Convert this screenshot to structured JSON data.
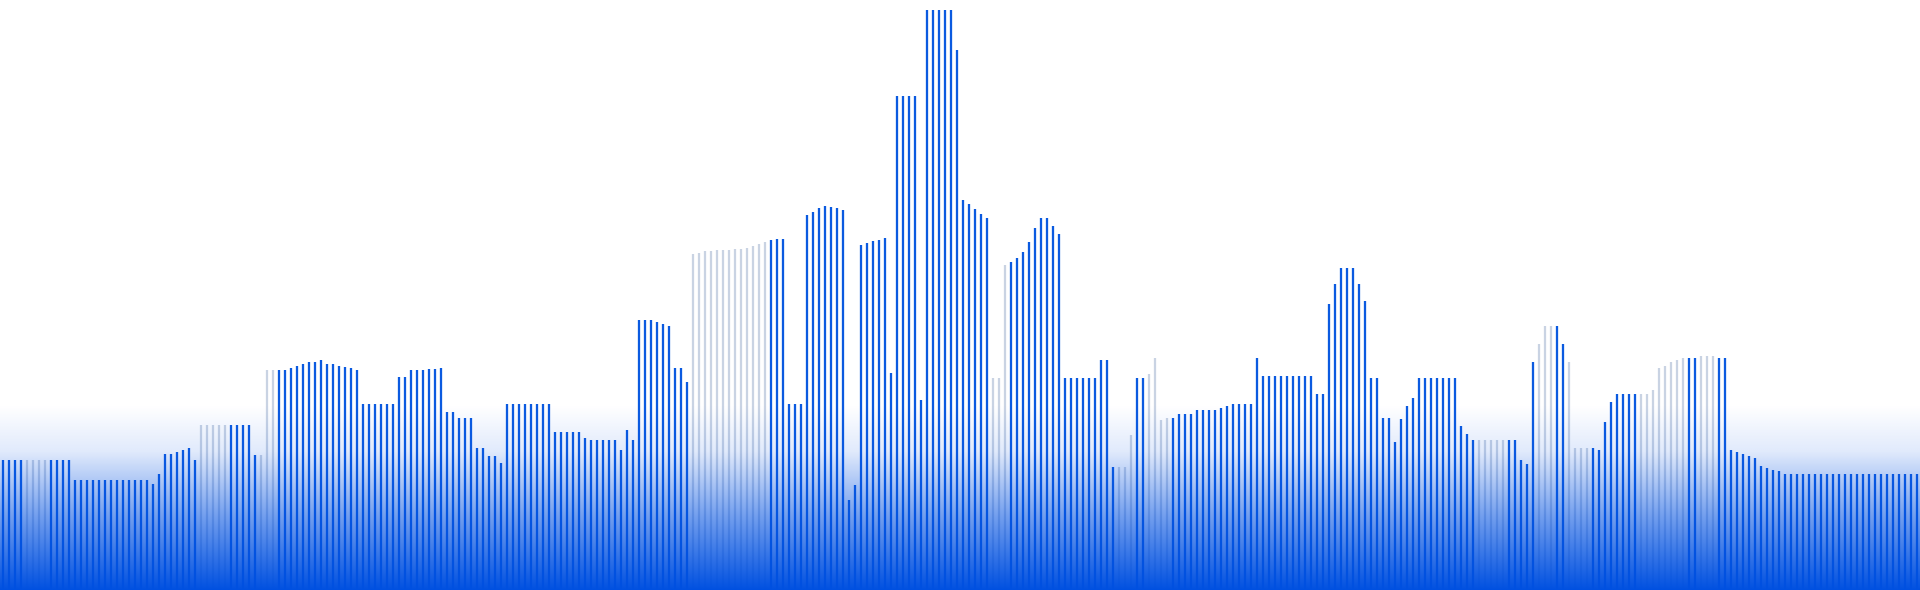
{
  "colors": {
    "bar": "#0b5ae0",
    "bar_faded": "#c9d3e3",
    "glow": "#0050e0",
    "background": "#ffffff"
  },
  "chart_data": {
    "type": "bar",
    "title": "",
    "xlabel": "",
    "ylabel": "",
    "grid": false,
    "legend": "none",
    "ylim": [
      0,
      590
    ],
    "values": [
      130,
      130,
      130,
      130,
      130,
      130,
      130,
      130,
      130,
      130,
      130,
      130,
      110,
      110,
      110,
      110,
      110,
      110,
      110,
      110,
      110,
      110,
      110,
      110,
      110,
      106,
      116,
      136,
      136,
      138,
      140,
      142,
      130,
      165,
      165,
      165,
      165,
      165,
      165,
      165,
      165,
      165,
      135,
      135,
      220,
      220,
      220,
      220,
      222,
      224,
      226,
      228,
      228,
      230,
      226,
      226,
      224,
      223,
      222,
      220,
      186,
      186,
      186,
      186,
      186,
      186,
      213,
      213,
      220,
      220,
      220,
      221,
      221,
      222,
      178,
      178,
      172,
      172,
      172,
      142,
      142,
      134,
      134,
      127,
      186,
      186,
      186,
      186,
      186,
      186,
      186,
      186,
      158,
      158,
      158,
      158,
      158,
      152,
      150,
      150,
      150,
      150,
      150,
      140,
      160,
      150,
      270,
      270,
      270,
      268,
      266,
      264,
      222,
      222,
      208,
      336,
      337,
      339,
      339,
      340,
      340,
      340,
      341,
      341,
      342,
      344,
      346,
      348,
      350,
      351,
      351,
      186,
      186,
      186,
      375,
      378,
      382,
      384,
      383,
      382,
      380,
      90,
      105,
      345,
      347,
      349,
      350,
      352,
      217,
      494,
      494,
      494,
      494,
      190,
      580,
      580,
      580,
      580,
      580,
      540,
      390,
      386,
      381,
      376,
      372,
      212,
      212,
      325,
      328,
      332,
      338,
      348,
      362,
      372,
      372,
      364,
      356,
      212,
      212,
      212,
      212,
      212,
      212,
      230,
      230,
      123,
      123,
      123,
      155,
      212,
      212,
      216,
      232,
      170,
      172,
      172,
      176,
      176,
      176,
      180,
      180,
      180,
      180,
      182,
      184,
      186,
      186,
      186,
      186,
      232,
      214,
      214,
      214,
      214,
      214,
      214,
      214,
      214,
      214,
      196,
      196,
      286,
      306,
      322,
      322,
      322,
      306,
      289,
      212,
      212,
      172,
      172,
      148,
      171,
      184,
      192,
      212,
      212,
      212,
      212,
      212,
      212,
      212,
      164,
      156,
      150,
      150,
      150,
      150,
      150,
      150,
      150,
      150,
      130,
      126,
      228,
      246,
      264,
      264,
      264,
      246,
      228,
      142,
      142,
      142,
      142,
      140,
      168,
      188,
      196,
      196,
      196,
      196,
      196,
      196,
      200,
      222,
      224,
      228,
      230,
      232,
      232,
      232,
      234,
      234,
      234,
      232,
      232,
      140,
      138,
      136,
      134,
      132,
      124,
      122,
      120,
      119,
      116,
      116,
      116,
      116,
      116,
      116,
      116,
      116,
      116,
      116,
      116,
      116,
      116,
      116,
      116,
      116,
      116,
      116,
      116,
      116,
      116,
      116,
      116
    ],
    "faded": [
      [
        25,
        40
      ],
      [
        200,
        217
      ],
      [
        260,
        265
      ],
      [
        690,
        760
      ],
      [
        990,
        1000
      ],
      [
        1120,
        1125
      ],
      [
        1150,
        1160
      ],
      [
        1480,
        1500
      ],
      [
        1540,
        1545
      ],
      [
        1570,
        1580
      ],
      [
        1640,
        1680
      ],
      [
        1700,
        1710
      ]
    ]
  }
}
